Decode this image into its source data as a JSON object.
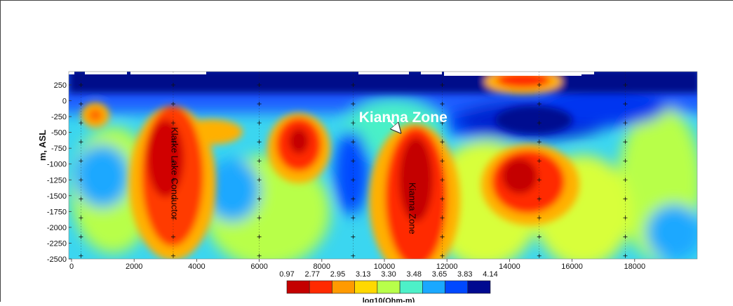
{
  "chart_data": {
    "type": "heatmap",
    "title": "",
    "ylabel": "m, ASL",
    "colorbar_label": "log10(Ohm-m)",
    "xlim": [
      0,
      20000
    ],
    "ylim": [
      -2500,
      450
    ],
    "x_ticks": [
      0,
      2000,
      4000,
      6000,
      8000,
      10000,
      12000,
      14000,
      16000,
      18000
    ],
    "x_tick_labels": [
      "0",
      "2000",
      "4000",
      "6000",
      "8000",
      "10000",
      "12000",
      "14000",
      "16000",
      "18000"
    ],
    "y_ticks": [
      250,
      0,
      -250,
      -500,
      -750,
      -1000,
      -1250,
      -1500,
      -1750,
      -2000,
      -2250,
      -2500
    ],
    "y_tick_labels": [
      "250",
      "0",
      "-250",
      "-500",
      "-750",
      "-1000",
      "-1250",
      "-1500",
      "-1750",
      "-2000",
      "-2250",
      "-2500"
    ],
    "colorbar_ticks": [
      "0.97",
      "2.77",
      "2.95",
      "3.13",
      "3.30",
      "3.48",
      "3.65",
      "3.83",
      "4.14"
    ],
    "colorbar_colors": [
      "#c40000",
      "#ff2a00",
      "#ff9a00",
      "#ffd800",
      "#b8ff4a",
      "#4df0c8",
      "#1aa8ff",
      "#0048ff",
      "#000a90"
    ],
    "station_x": [
      300,
      3250,
      6000,
      9000,
      11850,
      14950,
      17700
    ],
    "station_y": [
      250,
      -50,
      -350,
      -650,
      -950,
      -1250,
      -1550,
      -1850,
      -2150,
      -2450
    ],
    "annotations": [
      {
        "label": "Kianna Zone",
        "x": 10600,
        "y": -340
      },
      {
        "label": "Kianna Zone",
        "x": 10800,
        "y": -1700
      },
      {
        "label": "Klarke Lake Conductor",
        "x": 3200,
        "y": -1150
      }
    ],
    "anomalies": [
      {
        "feature": "Klarke Lake Conductor",
        "x_center": 3000,
        "y_center": -1150,
        "log10_resistivity": 1.2
      },
      {
        "feature": "Kianna Zone",
        "x_center": 11000,
        "y_center": -1300,
        "log10_resistivity": 1.1
      },
      {
        "x_center": 7300,
        "y_center": -800,
        "log10_resistivity": 1.5
      },
      {
        "x_center": 14400,
        "y_center": -1250,
        "log10_resistivity": 1.6
      },
      {
        "x_center": 14500,
        "y_center": 300,
        "log10_resistivity": 2.0
      },
      {
        "x_center": 850,
        "y_center": -200,
        "log10_resistivity": 2.6
      }
    ]
  }
}
